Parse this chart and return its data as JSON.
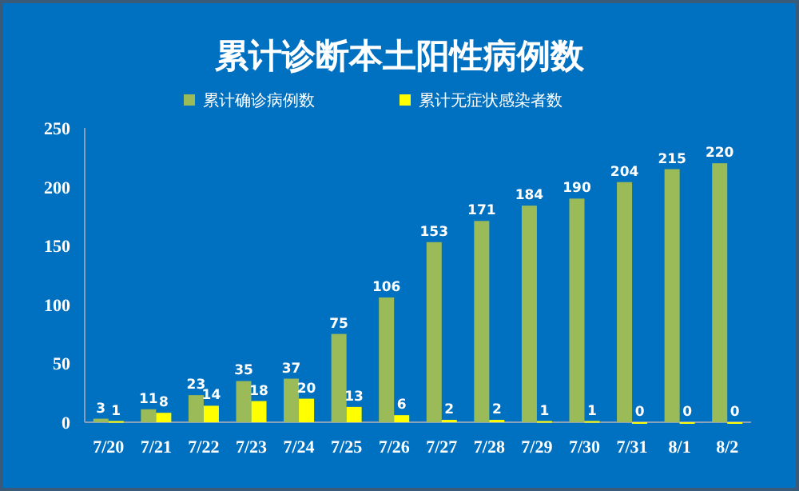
{
  "chart_data": {
    "type": "bar",
    "title": "累计诊断本土阳性病例数",
    "categories": [
      "7/20",
      "7/21",
      "7/22",
      "7/23",
      "7/24",
      "7/25",
      "7/26",
      "7/27",
      "7/28",
      "7/29",
      "7/30",
      "7/31",
      "8/1",
      "8/2"
    ],
    "series": [
      {
        "name": "累计确诊病例数",
        "color": "#9bbb59",
        "values": [
          3,
          11,
          23,
          35,
          37,
          75,
          106,
          153,
          171,
          184,
          190,
          204,
          215,
          220
        ]
      },
      {
        "name": "累计无症状感染者数",
        "color": "#ffff00",
        "values": [
          1,
          8,
          14,
          18,
          20,
          13,
          6,
          2,
          2,
          1,
          1,
          0,
          0,
          0
        ]
      }
    ],
    "ylim": [
      0,
      250
    ],
    "yticks": [
      0,
      50,
      100,
      150,
      200,
      250
    ],
    "grid": false,
    "legend": "top",
    "data_labels": true
  }
}
